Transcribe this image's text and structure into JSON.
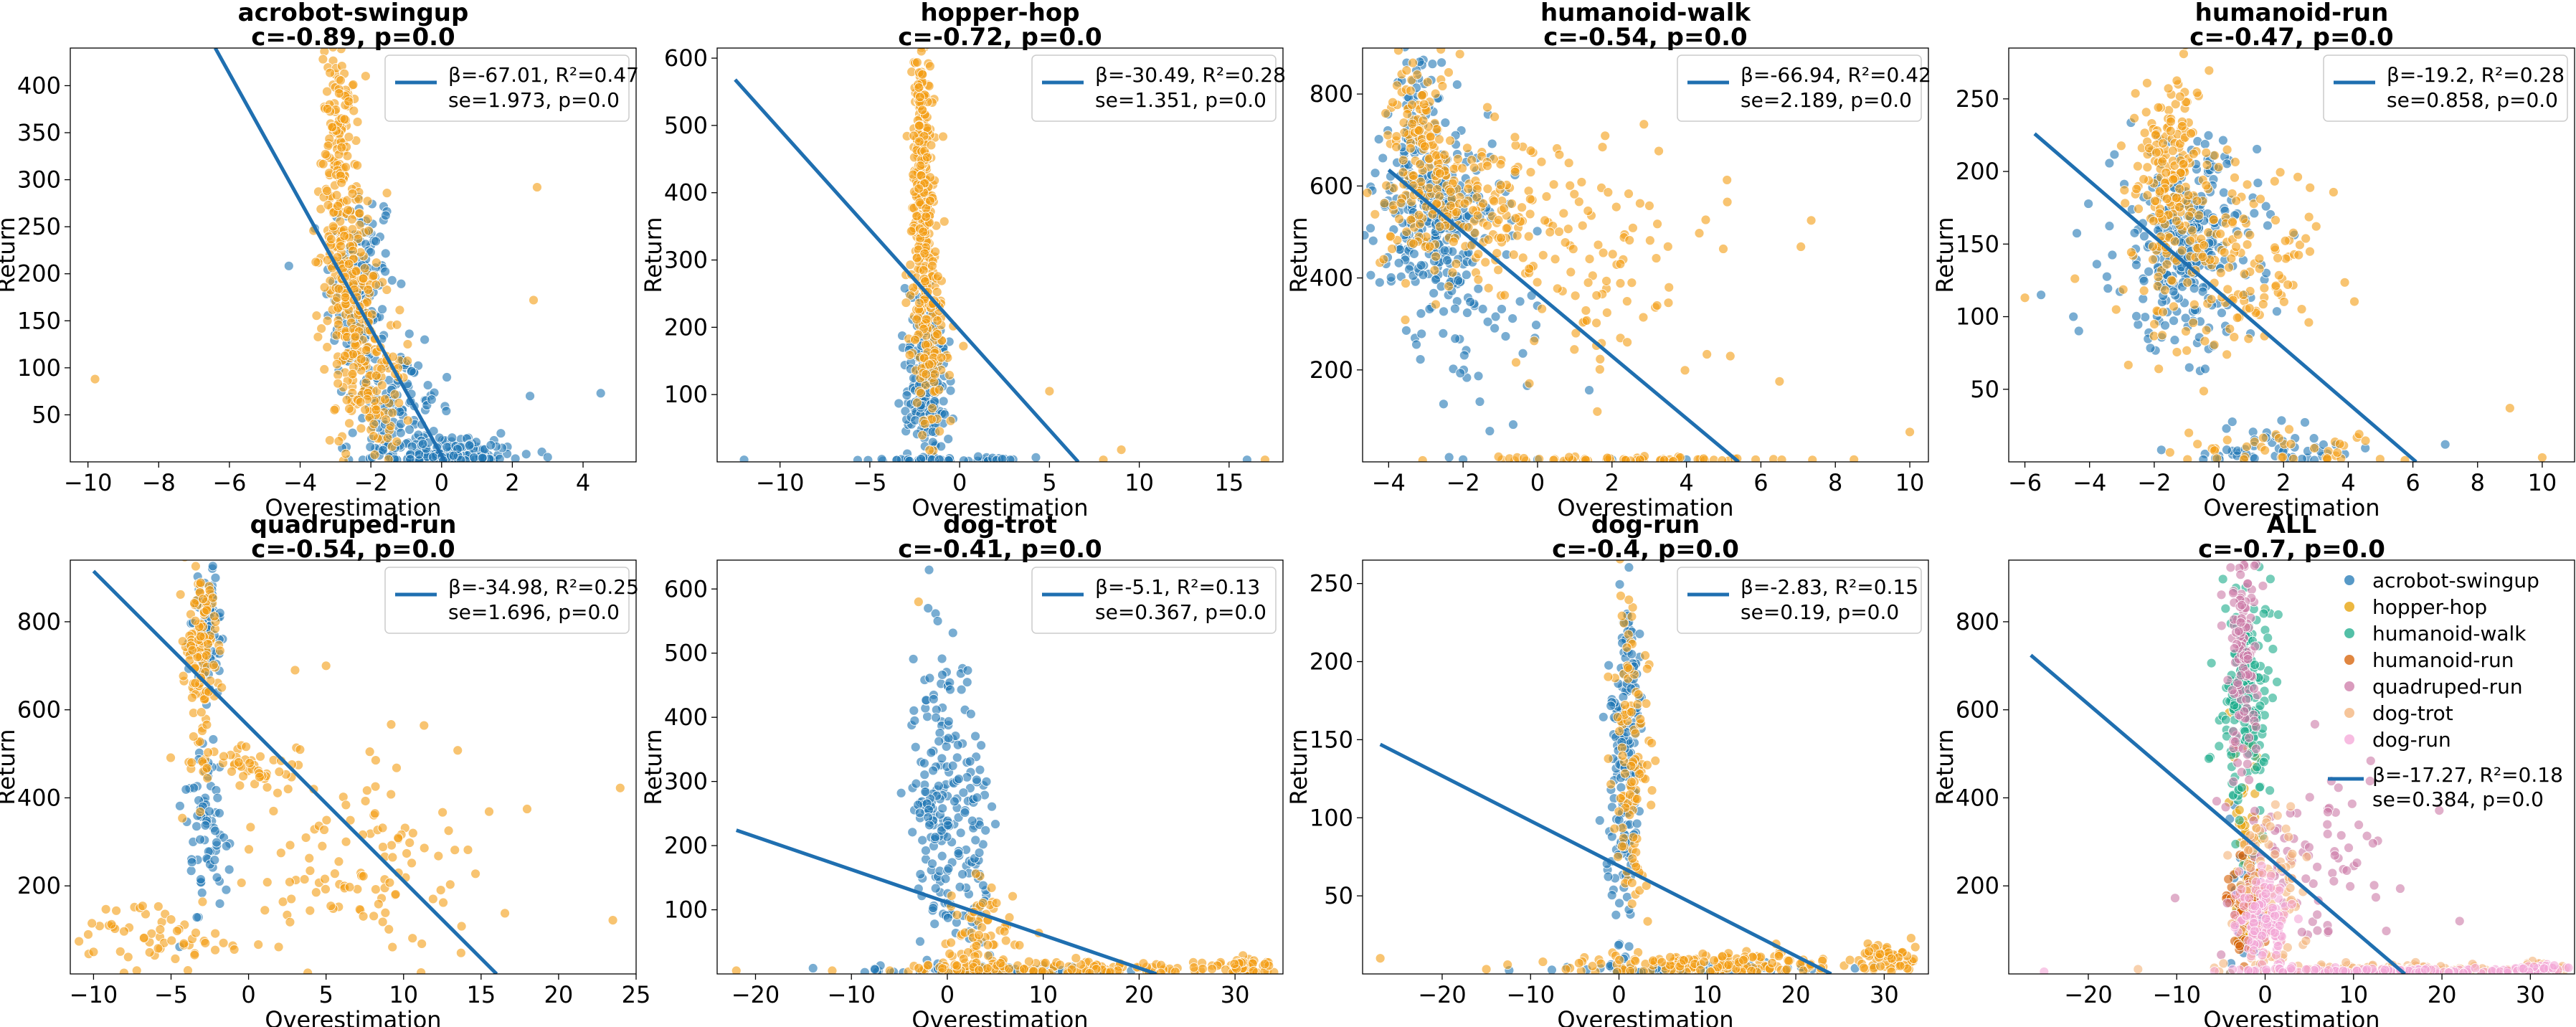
{
  "figure": {
    "xlabel_common": "Overestimation",
    "ylabel_common": "Return"
  },
  "chart_data": [
    {
      "type": "scatter",
      "title": "acrobot-swingup",
      "subtitle": "c=-0.89, p=0.0",
      "xlabel": "Overestimation",
      "ylabel": "Return",
      "xlim": [
        -10.5,
        5.5
      ],
      "ylim": [
        0,
        440
      ],
      "xticks": [
        -10,
        -8,
        -6,
        -4,
        -2,
        0,
        2,
        4
      ],
      "yticks": [
        50,
        100,
        150,
        200,
        250,
        300,
        350,
        400
      ],
      "series": [
        {
          "color": "#1f77b4",
          "clusters": [
            {
              "cx": -2.3,
              "cy": 180,
              "sx": 0.5,
              "sy": 60,
              "n": 140
            },
            {
              "cx": -1.3,
              "cy": 60,
              "sx": 0.6,
              "sy": 30,
              "n": 120
            },
            {
              "cx": 0.3,
              "cy": 8,
              "sx": 1.0,
              "sy": 8,
              "n": 160
            }
          ],
          "extra_points": [
            [
              4.5,
              73
            ],
            [
              2.5,
              70
            ],
            [
              3,
              5
            ]
          ]
        },
        {
          "color": "#f39c12",
          "clusters": [
            {
              "cx": -2.9,
              "cy": 330,
              "sx": 0.25,
              "sy": 60,
              "n": 140
            },
            {
              "cx": -2.6,
              "cy": 190,
              "sx": 0.35,
              "sy": 50,
              "n": 180
            },
            {
              "cx": -2.0,
              "cy": 80,
              "sx": 0.5,
              "sy": 35,
              "n": 120
            }
          ],
          "extra_points": [
            [
              -9.8,
              88
            ],
            [
              2.7,
              292
            ],
            [
              2.6,
              172
            ]
          ]
        }
      ],
      "fit_line": {
        "x": [
          -6.4,
          0.1
        ],
        "y": [
          440,
          0
        ]
      },
      "legend": {
        "position": "top-right",
        "line1": "β=-67.01, R²=0.47",
        "line2": "se=1.973, p=0.0"
      }
    },
    {
      "type": "scatter",
      "title": "hopper-hop",
      "subtitle": "c=-0.72, p=0.0",
      "xlabel": "Overestimation",
      "ylabel": "Return",
      "xlim": [
        -13.5,
        18
      ],
      "ylim": [
        0,
        615
      ],
      "xticks": [
        -10,
        -5,
        0,
        5,
        10,
        15
      ],
      "yticks": [
        100,
        200,
        300,
        400,
        500,
        600
      ],
      "series": [
        {
          "color": "#1f77b4",
          "clusters": [
            {
              "cx": -1.8,
              "cy": 120,
              "sx": 0.7,
              "sy": 60,
              "n": 200
            },
            {
              "cx": 1.0,
              "cy": 3,
              "sx": 2.5,
              "sy": 3,
              "n": 40
            }
          ],
          "extra_points": [
            [
              -12,
              3
            ],
            [
              16,
              3
            ]
          ]
        },
        {
          "color": "#f39c12",
          "clusters": [
            {
              "cx": -2.1,
              "cy": 430,
              "sx": 0.3,
              "sy": 110,
              "n": 280
            },
            {
              "cx": -1.7,
              "cy": 180,
              "sx": 0.5,
              "sy": 70,
              "n": 130
            }
          ],
          "extra_points": [
            [
              5,
              105
            ],
            [
              9,
              18
            ],
            [
              8,
              3
            ],
            [
              17,
              3
            ]
          ]
        }
      ],
      "fit_line": {
        "x": [
          -12.5,
          6.6
        ],
        "y": [
          568,
          0
        ]
      },
      "legend": {
        "position": "top-right",
        "line1": "β=-30.49, R²=0.28",
        "line2": "se=1.351, p=0.0"
      }
    },
    {
      "type": "scatter",
      "title": "humanoid-walk",
      "subtitle": "c=-0.54, p=0.0",
      "xlabel": "Overestimation",
      "ylabel": "Return",
      "xlim": [
        -4.7,
        10.5
      ],
      "ylim": [
        0,
        900
      ],
      "xticks": [
        -4,
        -2,
        0,
        2,
        4,
        6,
        8,
        10
      ],
      "yticks": [
        200,
        400,
        600,
        800
      ],
      "series": [
        {
          "color": "#1f77b4",
          "clusters": [
            {
              "cx": -2.8,
              "cy": 530,
              "sx": 0.8,
              "sy": 90,
              "n": 280
            },
            {
              "cx": -3.3,
              "cy": 750,
              "sx": 0.4,
              "sy": 90,
              "n": 60
            },
            {
              "cx": -1.5,
              "cy": 300,
              "sx": 1.2,
              "sy": 130,
              "n": 50
            }
          ],
          "extra_points": [
            [
              -2,
              5
            ],
            [
              0,
              5
            ],
            [
              2,
              5
            ],
            [
              4,
              5
            ]
          ]
        },
        {
          "color": "#f39c12",
          "clusters": [
            {
              "cx": -3.2,
              "cy": 700,
              "sx": 0.4,
              "sy": 110,
              "n": 120
            },
            {
              "cx": -2.0,
              "cy": 560,
              "sx": 1.2,
              "sy": 80,
              "n": 160
            },
            {
              "cx": 1.5,
              "cy": 430,
              "sx": 1.8,
              "sy": 150,
              "n": 120
            },
            {
              "cx": 2.0,
              "cy": 5,
              "sx": 2.0,
              "sy": 4,
              "n": 60
            }
          ],
          "extra_points": [
            [
              10,
              65
            ],
            [
              6.5,
              175
            ],
            [
              8.5,
              5
            ]
          ]
        }
      ],
      "fit_line": {
        "x": [
          -4.0,
          5.4
        ],
        "y": [
          635,
          0
        ]
      },
      "legend": {
        "position": "top-right",
        "line1": "β=-66.94, R²=0.42",
        "line2": "se=2.189, p=0.0"
      }
    },
    {
      "type": "scatter",
      "title": "humanoid-run",
      "subtitle": "c=-0.47, p=0.0",
      "xlabel": "Overestimation",
      "ylabel": "Return",
      "xlim": [
        -6.5,
        11
      ],
      "ylim": [
        0,
        285
      ],
      "xticks": [
        -6,
        -4,
        -2,
        0,
        2,
        4,
        6,
        8,
        10
      ],
      "yticks": [
        50,
        100,
        150,
        200,
        250
      ],
      "series": [
        {
          "color": "#1f77b4",
          "clusters": [
            {
              "cx": -1.0,
              "cy": 150,
              "sx": 1.1,
              "sy": 35,
              "n": 300
            },
            {
              "cx": 1.5,
              "cy": 8,
              "sx": 1.5,
              "sy": 8,
              "n": 50
            }
          ],
          "extra_points": [
            [
              -5.5,
              115
            ],
            [
              -4.5,
              100
            ],
            [
              7,
              12
            ]
          ]
        },
        {
          "color": "#f39c12",
          "clusters": [
            {
              "cx": -1.5,
              "cy": 190,
              "sx": 0.5,
              "sy": 40,
              "n": 180
            },
            {
              "cx": 0.5,
              "cy": 140,
              "sx": 1.5,
              "sy": 35,
              "n": 150
            },
            {
              "cx": 2.5,
              "cy": 8,
              "sx": 2.0,
              "sy": 6,
              "n": 40
            }
          ],
          "extra_points": [
            [
              9,
              37
            ],
            [
              10,
              3
            ],
            [
              -6.0,
              113
            ]
          ]
        }
      ],
      "fit_line": {
        "x": [
          -5.7,
          6.1
        ],
        "y": [
          226,
          0
        ]
      },
      "legend": {
        "position": "top-right",
        "line1": "β=-19.2, R²=0.28",
        "line2": "se=0.858, p=0.0"
      }
    },
    {
      "type": "scatter",
      "title": "quadruped-run",
      "subtitle": "c=-0.54, p=0.0",
      "xlabel": "Overestimation",
      "ylabel": "Return",
      "xlim": [
        -11.5,
        25
      ],
      "ylim": [
        0,
        940
      ],
      "xticks": [
        -10,
        -5,
        0,
        5,
        10,
        15,
        20,
        25
      ],
      "yticks": [
        200,
        400,
        600,
        800
      ],
      "series": [
        {
          "color": "#1f77b4",
          "clusters": [
            {
              "cx": -2.8,
              "cy": 780,
              "sx": 0.5,
              "sy": 80,
              "n": 80
            },
            {
              "cx": -2.6,
              "cy": 320,
              "sx": 0.6,
              "sy": 100,
              "n": 70
            }
          ],
          "extra_points": [
            [
              -2.6,
              480
            ],
            [
              -2.6,
              460
            ]
          ]
        },
        {
          "color": "#f39c12",
          "clusters": [
            {
              "cx": -3.0,
              "cy": 730,
              "sx": 0.5,
              "sy": 110,
              "n": 130
            },
            {
              "cx": 0.0,
              "cy": 470,
              "sx": 2.0,
              "sy": 20,
              "n": 50
            },
            {
              "cx": 7.0,
              "cy": 250,
              "sx": 5.0,
              "sy": 120,
              "n": 120
            },
            {
              "cx": -6.0,
              "cy": 80,
              "sx": 3.0,
              "sy": 40,
              "n": 60
            }
          ],
          "extra_points": [
            [
              23.5,
              122
            ],
            [
              -10,
              50
            ],
            [
              3,
              690
            ],
            [
              5,
              700
            ]
          ]
        }
      ],
      "fit_line": {
        "x": [
          -10.0,
          16.0
        ],
        "y": [
          915,
          0
        ]
      },
      "legend": {
        "position": "top-right",
        "line1": "β=-34.98, R²=0.25",
        "line2": "se=1.696, p=0.0"
      }
    },
    {
      "type": "scatter",
      "title": "dog-trot",
      "subtitle": "c=-0.41, p=0.0",
      "xlabel": "Overestimation",
      "ylabel": "Return",
      "xlim": [
        -24,
        35
      ],
      "ylim": [
        0,
        645
      ],
      "xticks": [
        -20,
        -10,
        0,
        10,
        20,
        30
      ],
      "yticks": [
        100,
        200,
        300,
        400,
        500,
        600
      ],
      "series": [
        {
          "color": "#1f77b4",
          "clusters": [
            {
              "cx": -1.0,
              "cy": 280,
              "sx": 1.3,
              "sy": 120,
              "n": 150
            },
            {
              "cx": 2.5,
              "cy": 200,
              "sx": 1.2,
              "sy": 110,
              "n": 90
            },
            {
              "cx": 4.0,
              "cy": 5,
              "sx": 8,
              "sy": 4,
              "n": 60
            }
          ],
          "extra_points": [
            [
              -2,
              570
            ],
            [
              -1,
              550
            ]
          ]
        },
        {
          "color": "#f39c12",
          "clusters": [
            {
              "cx": 3.0,
              "cy": 50,
              "sx": 2.0,
              "sy": 40,
              "n": 80
            },
            {
              "cx": 12.0,
              "cy": 8,
              "sx": 9,
              "sy": 6,
              "n": 120
            },
            {
              "cx": 31.0,
              "cy": 12,
              "sx": 1.5,
              "sy": 8,
              "n": 60
            }
          ],
          "extra_points": [
            [
              -22,
              5
            ],
            [
              -12,
              5
            ],
            [
              -6,
              5
            ],
            [
              -3,
              580
            ]
          ]
        }
      ],
      "fit_line": {
        "x": [
          -22.0,
          21.8
        ],
        "y": [
          224,
          0
        ]
      },
      "legend": {
        "position": "top-right",
        "line1": "β=-5.1, R²=0.13",
        "line2": "se=0.367, p=0.0"
      }
    },
    {
      "type": "scatter",
      "title": "dog-run",
      "subtitle": "c=-0.4, p=0.0",
      "xlabel": "Overestimation",
      "ylabel": "Return",
      "xlim": [
        -29,
        35
      ],
      "ylim": [
        0,
        265
      ],
      "xticks": [
        -20,
        -10,
        0,
        10,
        20,
        30
      ],
      "yticks": [
        50,
        100,
        150,
        200,
        250
      ],
      "series": [
        {
          "color": "#1f77b4",
          "clusters": [
            {
              "cx": 0.5,
              "cy": 110,
              "sx": 0.9,
              "sy": 60,
              "n": 160
            },
            {
              "cx": 1.5,
              "cy": 190,
              "sx": 0.7,
              "sy": 25,
              "n": 40
            },
            {
              "cx": 10.0,
              "cy": 3,
              "sx": 8,
              "sy": 2,
              "n": 50
            }
          ],
          "extra_points": [
            [
              -1,
              5
            ]
          ]
        },
        {
          "color": "#f39c12",
          "clusters": [
            {
              "cx": 1.5,
              "cy": 130,
              "sx": 1.0,
              "sy": 55,
              "n": 120
            },
            {
              "cx": 12.0,
              "cy": 6,
              "sx": 8,
              "sy": 4,
              "n": 160
            },
            {
              "cx": 30.5,
              "cy": 10,
              "sx": 1.5,
              "sy": 5,
              "n": 60
            }
          ],
          "extra_points": [
            [
              -27,
              10
            ],
            [
              -15,
              3
            ],
            [
              -6,
              3
            ],
            [
              -3,
              5
            ]
          ]
        }
      ],
      "fit_line": {
        "x": [
          -27.0,
          24.0
        ],
        "y": [
          147,
          0
        ]
      },
      "legend": {
        "position": "top-right",
        "line1": "β=-2.83, R²=0.15",
        "line2": "se=0.19, p=0.0"
      }
    },
    {
      "type": "scatter",
      "title": "ALL",
      "subtitle": "c=-0.7, p=0.0",
      "xlabel": "Overestimation",
      "ylabel": "Return",
      "xlim": [
        -29,
        35
      ],
      "ylim": [
        0,
        940
      ],
      "xticks": [
        -20,
        -10,
        0,
        10,
        20,
        30
      ],
      "yticks": [
        200,
        400,
        600,
        800
      ],
      "series": [
        {
          "name": "acrobot-swingup",
          "color": "#1f77b4",
          "clusters": [
            {
              "cx": -2.0,
              "cy": 150,
              "sx": 0.8,
              "sy": 100,
              "n": 60
            }
          ],
          "extra_points": []
        },
        {
          "name": "hopper-hop",
          "color": "#e69f00",
          "clusters": [
            {
              "cx": -2.0,
              "cy": 300,
              "sx": 0.8,
              "sy": 150,
              "n": 60
            }
          ],
          "extra_points": []
        },
        {
          "name": "humanoid-walk",
          "color": "#1aab8a",
          "clusters": [
            {
              "cx": -2.0,
              "cy": 620,
              "sx": 1.5,
              "sy": 140,
              "n": 180
            }
          ],
          "extra_points": []
        },
        {
          "name": "humanoid-run",
          "color": "#d55e00",
          "clusters": [
            {
              "cx": -2.0,
              "cy": 150,
              "sx": 1.2,
              "sy": 50,
              "n": 80
            }
          ],
          "extra_points": []
        },
        {
          "name": "quadruped-run",
          "color": "#cc79a7",
          "clusters": [
            {
              "cx": -2.5,
              "cy": 700,
              "sx": 0.8,
              "sy": 150,
              "n": 120
            },
            {
              "cx": 5.0,
              "cy": 250,
              "sx": 5.0,
              "sy": 120,
              "n": 90
            }
          ],
          "extra_points": [
            [
              22,
              120
            ]
          ]
        },
        {
          "name": "dog-trot",
          "color": "#f3b278",
          "clusters": [
            {
              "cx": 0.0,
              "cy": 200,
              "sx": 2.0,
              "sy": 100,
              "n": 100
            },
            {
              "cx": 12.0,
              "cy": 10,
              "sx": 9,
              "sy": 6,
              "n": 100
            },
            {
              "cx": 31.0,
              "cy": 12,
              "sx": 1.5,
              "sy": 8,
              "n": 40
            }
          ],
          "extra_points": []
        },
        {
          "name": "dog-run",
          "color": "#f4a6d7",
          "clusters": [
            {
              "cx": 0.0,
              "cy": 120,
              "sx": 1.5,
              "sy": 60,
              "n": 120
            },
            {
              "cx": 12.0,
              "cy": 6,
              "sx": 8,
              "sy": 4,
              "n": 120
            },
            {
              "cx": 30.5,
              "cy": 10,
              "sx": 1.5,
              "sy": 5,
              "n": 40
            }
          ],
          "extra_points": [
            [
              -25,
              5
            ]
          ]
        }
      ],
      "fit_line": {
        "x": [
          -26.5,
          15.8
        ],
        "y": [
          724,
          0
        ]
      },
      "legend": {
        "position": "right",
        "entries": [
          "acrobot-swingup",
          "hopper-hop",
          "humanoid-walk",
          "humanoid-run",
          "quadruped-run",
          "dog-trot",
          "dog-run"
        ],
        "line1": "β=-17.27, R²=0.18",
        "line2": "se=0.384, p=0.0"
      }
    }
  ]
}
